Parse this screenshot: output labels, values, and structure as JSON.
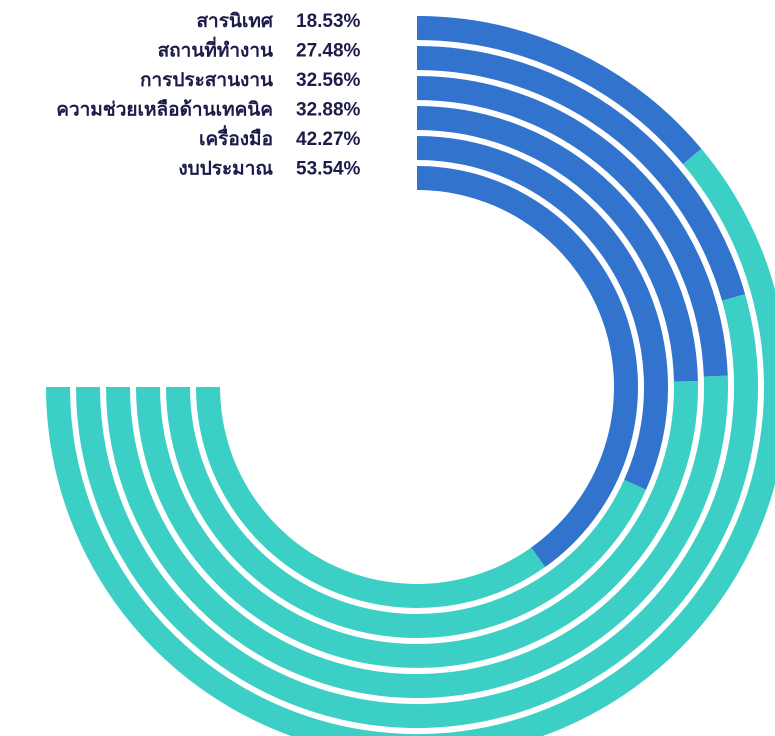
{
  "chart_data": {
    "type": "radial-bar",
    "categories": [
      "สารนิเทศ",
      "สถานที่ทำงาน",
      "การประสานงาน",
      "ความช่วยเหลือด้านเทคนิค",
      "เครื่องมือ",
      "งบประมาณ"
    ],
    "values": [
      18.53,
      27.48,
      32.56,
      32.88,
      42.27,
      53.54
    ],
    "value_labels": [
      "18.53%",
      "27.48%",
      "32.56%",
      "32.88%",
      "42.27%",
      "53.54%"
    ],
    "max": 100,
    "arc_span_degrees": 270,
    "colors": {
      "value": "#3273ce",
      "remainder": "#3ccfc5",
      "label_text": "#1c1c4a"
    }
  }
}
